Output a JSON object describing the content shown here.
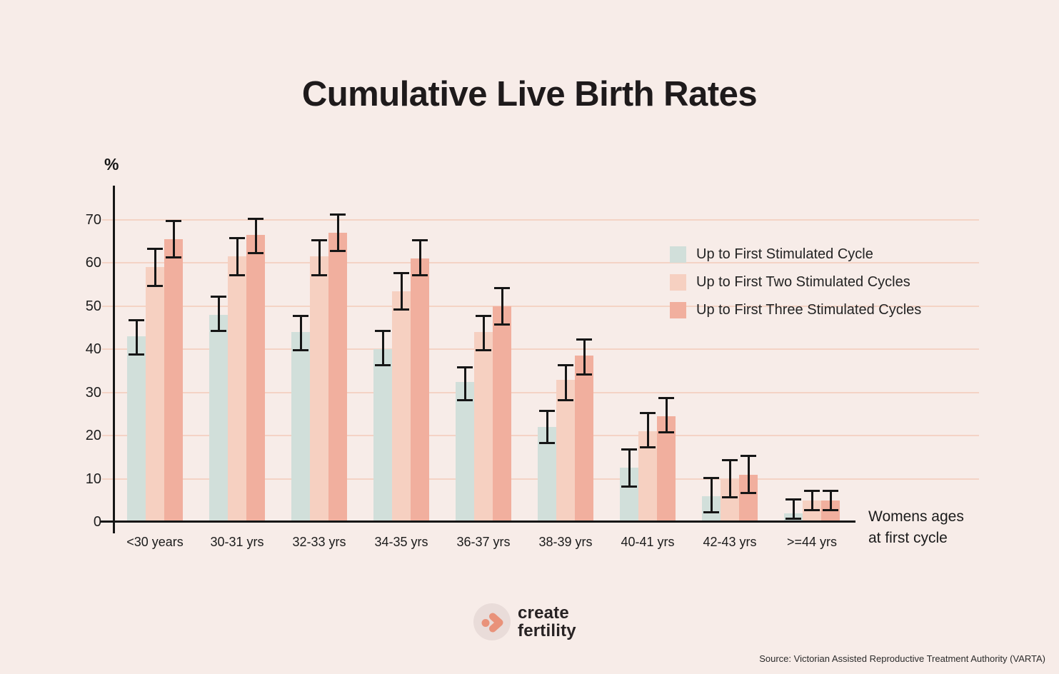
{
  "title": "Cumulative Live Birth Rates",
  "y_axis": {
    "unit_label": "%",
    "ticks": [
      0,
      10,
      20,
      30,
      40,
      50,
      60,
      70
    ]
  },
  "x_axis": {
    "title_line1": "Womens ages",
    "title_line2": "at first cycle"
  },
  "legend": [
    "Up to First Stimulated Cycle",
    "Up to First Two Stimulated Cycles",
    "Up to First Three Stimulated Cycles"
  ],
  "chart_data": {
    "type": "bar",
    "title": "Cumulative Live Birth Rates",
    "categories": [
      "<30 years",
      "30-31 yrs",
      "32-33 yrs",
      "34-35 yrs",
      "36-37 yrs",
      "38-39 yrs",
      "40-41 yrs",
      "42-43 yrs",
      ">=44 yrs"
    ],
    "series": [
      {
        "name": "Up to First Stimulated Cycle",
        "color": "#d1dfda",
        "values": [
          43,
          48,
          44,
          40,
          32.5,
          22,
          12.5,
          6,
          2
        ],
        "error_low": [
          38.5,
          44,
          39.5,
          36,
          28,
          18,
          8,
          2,
          0.5
        ],
        "error_high": [
          47,
          52.5,
          48,
          44.5,
          36,
          26,
          17,
          10.5,
          5.5
        ]
      },
      {
        "name": "Up to First Two Stimulated Cycles",
        "color": "#f6d0c1",
        "values": [
          59,
          61.5,
          61.5,
          53.5,
          44,
          33,
          21,
          10,
          5
        ],
        "error_low": [
          54.5,
          57,
          57,
          49,
          39.5,
          28,
          17,
          5.5,
          2.5
        ],
        "error_high": [
          63.5,
          66,
          65.5,
          58,
          48,
          36.5,
          25.5,
          14.5,
          7.5
        ]
      },
      {
        "name": "Up to First Three Stimulated Cycles",
        "color": "#f1af9e",
        "values": [
          65.5,
          66.5,
          67,
          61,
          50,
          38.5,
          24.5,
          11,
          5
        ],
        "error_low": [
          61,
          62,
          62.5,
          57,
          45.5,
          34,
          20.5,
          6.5,
          2.5
        ],
        "error_high": [
          70,
          70.5,
          71.5,
          65.5,
          54.5,
          42.5,
          29,
          15.5,
          7.5
        ]
      }
    ],
    "xlabel": "Womens ages at first cycle",
    "ylabel": "%",
    "ylim": [
      0,
      70
    ],
    "grid": true,
    "error_bars": true,
    "legend_position": "upper right"
  },
  "colors": {
    "background": "#f7ece8",
    "gridline": "#f4d3c5",
    "axis": "#161616",
    "error_bar": "#161616",
    "logo_mark": "#e9927a",
    "logo_circle_bg": "#e9dcd9"
  },
  "footer": {
    "logo_line1": "create",
    "logo_line2": "fertility",
    "source": "Source: Victorian Assisted Reproductive Treatment Authority (VARTA)"
  }
}
